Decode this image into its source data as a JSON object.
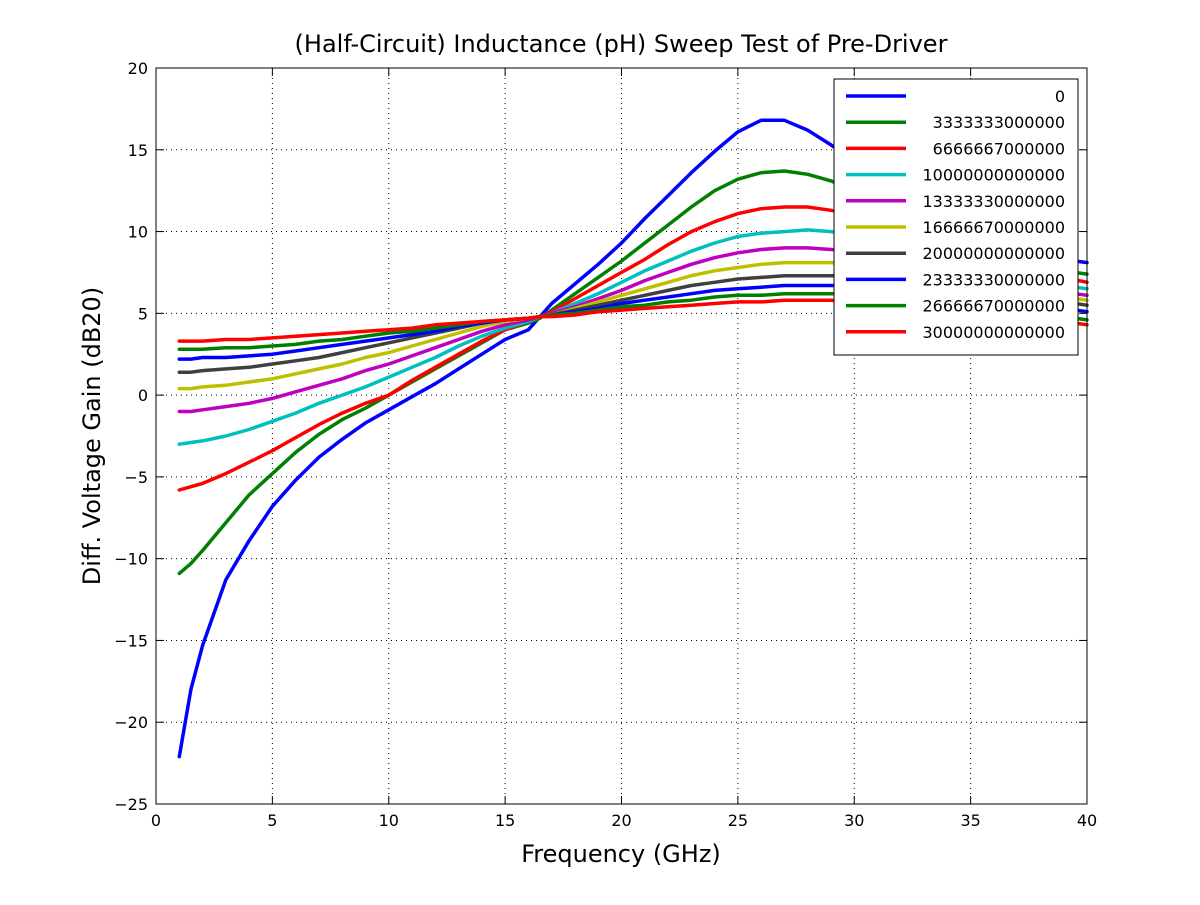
{
  "chart_data": {
    "type": "line",
    "title": "(Half-Circuit) Inductance (pH) Sweep Test of Pre-Driver",
    "xlabel": "Frequency (GHz)",
    "ylabel": "Diff. Voltage Gain (dB20)",
    "xlim": [
      0,
      40
    ],
    "ylim": [
      -25,
      20
    ],
    "xticks": [
      0,
      5,
      10,
      15,
      20,
      25,
      30,
      35,
      40
    ],
    "yticks": [
      -25,
      -20,
      -15,
      -10,
      -5,
      0,
      5,
      10,
      15,
      20
    ],
    "xtick_labels": [
      "0",
      "5",
      "10",
      "15",
      "20",
      "25",
      "30",
      "35",
      "40"
    ],
    "ytick_labels": [
      "−25",
      "−20",
      "−15",
      "−10",
      "−5",
      "0",
      "5",
      "10",
      "15",
      "20"
    ],
    "grid": true,
    "legend_position": "top-right",
    "x": [
      1,
      1.5,
      2,
      3,
      4,
      5,
      6,
      7,
      8,
      9,
      10,
      11,
      12,
      13,
      14,
      15,
      16,
      16.5,
      17,
      18,
      19,
      20,
      21,
      22,
      23,
      24,
      25,
      26,
      27,
      28,
      29,
      30,
      31,
      32,
      33,
      34,
      35,
      36,
      37,
      38,
      39,
      40
    ],
    "series": [
      {
        "name": "0",
        "color": "#0000ff",
        "values": [
          -22.1,
          -18,
          -15.3,
          -11.3,
          -8.9,
          -6.8,
          -5.2,
          -3.8,
          -2.7,
          -1.7,
          -0.9,
          -0.1,
          0.7,
          1.6,
          2.5,
          3.4,
          4.0,
          4.8,
          5.6,
          6.8,
          8.0,
          9.3,
          10.8,
          12.2,
          13.6,
          14.9,
          16.1,
          16.8,
          16.8,
          16.2,
          15.3,
          14.3,
          13.3,
          12.4,
          11.5,
          10.8,
          10.1,
          9.5,
          9.0,
          8.6,
          8.3,
          8.1
        ]
      },
      {
        "name": "3333333000000",
        "color": "#008000",
        "values": [
          -10.9,
          -10.3,
          -9.5,
          -7.8,
          -6.1,
          -4.8,
          -3.5,
          -2.4,
          -1.5,
          -0.8,
          0.0,
          0.8,
          1.6,
          2.4,
          3.2,
          4.0,
          4.4,
          4.7,
          5.2,
          6.2,
          7.2,
          8.2,
          9.3,
          10.4,
          11.5,
          12.5,
          13.2,
          13.6,
          13.7,
          13.5,
          13.1,
          12.5,
          11.9,
          11.2,
          10.5,
          9.9,
          9.3,
          8.8,
          8.3,
          7.9,
          7.6,
          7.4
        ]
      },
      {
        "name": "6666667000000",
        "color": "#ff0000",
        "values": [
          -5.8,
          -5.6,
          -5.4,
          -4.8,
          -4.1,
          -3.4,
          -2.6,
          -1.8,
          -1.1,
          -0.5,
          0.0,
          0.9,
          1.7,
          2.5,
          3.3,
          4.0,
          4.5,
          4.8,
          5.1,
          5.9,
          6.7,
          7.5,
          8.3,
          9.2,
          10.0,
          10.6,
          11.1,
          11.4,
          11.5,
          11.5,
          11.3,
          11.0,
          10.6,
          10.2,
          9.7,
          9.2,
          8.7,
          8.3,
          7.9,
          7.5,
          7.2,
          6.9
        ]
      },
      {
        "name": "10000000000000",
        "color": "#00bfbf",
        "values": [
          -3.0,
          -2.9,
          -2.8,
          -2.5,
          -2.1,
          -1.6,
          -1.1,
          -0.5,
          0.0,
          0.5,
          1.1,
          1.7,
          2.3,
          3.0,
          3.6,
          4.1,
          4.5,
          4.8,
          5.0,
          5.6,
          6.2,
          6.9,
          7.6,
          8.2,
          8.8,
          9.3,
          9.7,
          9.9,
          10.0,
          10.1,
          10.0,
          9.8,
          9.5,
          9.2,
          8.8,
          8.4,
          8.0,
          7.7,
          7.3,
          7.0,
          6.7,
          6.5
        ]
      },
      {
        "name": "13333330000000",
        "color": "#bf00bf",
        "values": [
          -1.0,
          -1.0,
          -0.9,
          -0.7,
          -0.5,
          -0.2,
          0.2,
          0.6,
          1.0,
          1.5,
          1.9,
          2.4,
          2.9,
          3.4,
          3.9,
          4.3,
          4.6,
          4.8,
          5.0,
          5.4,
          5.9,
          6.4,
          7.0,
          7.5,
          8.0,
          8.4,
          8.7,
          8.9,
          9.0,
          9.0,
          8.9,
          8.8,
          8.6,
          8.3,
          8.0,
          7.7,
          7.4,
          7.1,
          6.8,
          6.5,
          6.3,
          6.1
        ]
      },
      {
        "name": "16666670000000",
        "color": "#bfbf00",
        "values": [
          0.4,
          0.4,
          0.5,
          0.6,
          0.8,
          1.0,
          1.3,
          1.6,
          1.9,
          2.3,
          2.6,
          3.0,
          3.4,
          3.8,
          4.2,
          4.5,
          4.7,
          4.8,
          4.9,
          5.3,
          5.7,
          6.1,
          6.5,
          6.9,
          7.3,
          7.6,
          7.8,
          8.0,
          8.1,
          8.1,
          8.1,
          8.0,
          7.9,
          7.7,
          7.5,
          7.2,
          7.0,
          6.7,
          6.5,
          6.2,
          6.0,
          5.8
        ]
      },
      {
        "name": "20000000000000",
        "color": "#404040",
        "values": [
          1.4,
          1.4,
          1.5,
          1.6,
          1.7,
          1.9,
          2.1,
          2.3,
          2.6,
          2.9,
          3.2,
          3.5,
          3.8,
          4.1,
          4.4,
          4.6,
          4.7,
          4.8,
          4.9,
          5.2,
          5.5,
          5.8,
          6.1,
          6.4,
          6.7,
          6.9,
          7.1,
          7.2,
          7.3,
          7.3,
          7.3,
          7.3,
          7.2,
          7.1,
          6.9,
          6.7,
          6.5,
          6.3,
          6.1,
          5.9,
          5.7,
          5.5
        ]
      },
      {
        "name": "23333330000000",
        "color": "#0000ff",
        "values": [
          2.2,
          2.2,
          2.3,
          2.3,
          2.4,
          2.5,
          2.7,
          2.9,
          3.1,
          3.3,
          3.5,
          3.7,
          3.9,
          4.2,
          4.4,
          4.6,
          4.7,
          4.8,
          4.9,
          5.1,
          5.3,
          5.6,
          5.8,
          6.0,
          6.2,
          6.4,
          6.5,
          6.6,
          6.7,
          6.7,
          6.7,
          6.7,
          6.6,
          6.5,
          6.4,
          6.3,
          6.1,
          5.9,
          5.7,
          5.5,
          5.3,
          5.1
        ]
      },
      {
        "name": "26666670000000",
        "color": "#008000",
        "values": [
          2.8,
          2.8,
          2.8,
          2.9,
          2.9,
          3.0,
          3.1,
          3.3,
          3.4,
          3.6,
          3.8,
          3.9,
          4.1,
          4.3,
          4.5,
          4.6,
          4.7,
          4.8,
          4.9,
          5.0,
          5.2,
          5.4,
          5.5,
          5.7,
          5.8,
          6.0,
          6.1,
          6.1,
          6.2,
          6.2,
          6.2,
          6.2,
          6.1,
          6.0,
          5.9,
          5.8,
          5.6,
          5.4,
          5.2,
          5.0,
          4.8,
          4.6
        ]
      },
      {
        "name": "30000000000000",
        "color": "#ff0000",
        "values": [
          3.3,
          3.3,
          3.3,
          3.4,
          3.4,
          3.5,
          3.6,
          3.7,
          3.8,
          3.9,
          4.0,
          4.1,
          4.3,
          4.4,
          4.5,
          4.6,
          4.7,
          4.8,
          4.8,
          4.9,
          5.1,
          5.2,
          5.3,
          5.4,
          5.5,
          5.6,
          5.7,
          5.7,
          5.8,
          5.8,
          5.8,
          5.7,
          5.7,
          5.6,
          5.5,
          5.4,
          5.3,
          5.1,
          4.9,
          4.7,
          4.5,
          4.3
        ]
      }
    ]
  }
}
